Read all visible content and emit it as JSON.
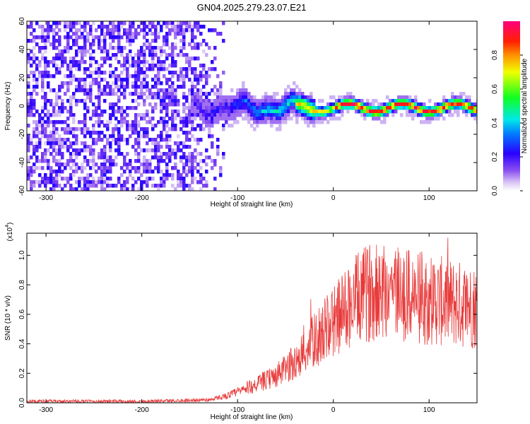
{
  "figure": {
    "title": "GN04.2025.279.23.07.E21"
  },
  "chart_data": [
    {
      "type": "heatmap",
      "xlabel": "Height of straight line (km)",
      "ylabel": "Frequency (Hz)",
      "xlim": [
        -320,
        150
      ],
      "ylim": [
        -60,
        60
      ],
      "xticks": [
        -300,
        -200,
        -100,
        0,
        100
      ],
      "yticks": [
        60,
        40,
        20,
        0,
        -20,
        -40,
        -60
      ],
      "colorbar": {
        "label": "Normalized spectral amplitude",
        "ticks": [
          0.0,
          0.2,
          0.4,
          0.6,
          0.8
        ],
        "range": [
          0,
          1
        ],
        "colormap": "rainbow (white-violet-blue-cyan-green-yellow-red-pink)"
      },
      "description_of_values": {
        "noise_region_x": [
          -320,
          -110
        ],
        "noise_level": 0.15,
        "signal_band_center_hz": 0,
        "signal_start_x": -150,
        "signal_peak_amplitude": 0.95
      }
    },
    {
      "type": "line",
      "xlabel": "Height of straight line (km)",
      "ylabel": "SNR (10 * v/v)",
      "y_multiplier": "(x10",
      "y_multiplier_exp": "4",
      "xlim": [
        -320,
        150
      ],
      "ylim": [
        0,
        1.15
      ],
      "xticks": [
        -300,
        -200,
        -100,
        0,
        100
      ],
      "yticks": [
        0.0,
        0.2,
        0.4,
        0.6,
        0.8,
        1.0
      ],
      "grid": false,
      "color": "#e83a3a",
      "envelope": {
        "x": [
          -320,
          -200,
          -130,
          -110,
          -90,
          -60,
          -40,
          -20,
          0,
          20,
          40,
          60,
          80,
          100,
          120,
          150
        ],
        "y": [
          0.01,
          0.01,
          0.02,
          0.05,
          0.1,
          0.18,
          0.28,
          0.42,
          0.55,
          0.68,
          0.76,
          0.78,
          0.72,
          0.7,
          0.68,
          0.65
        ]
      }
    }
  ]
}
